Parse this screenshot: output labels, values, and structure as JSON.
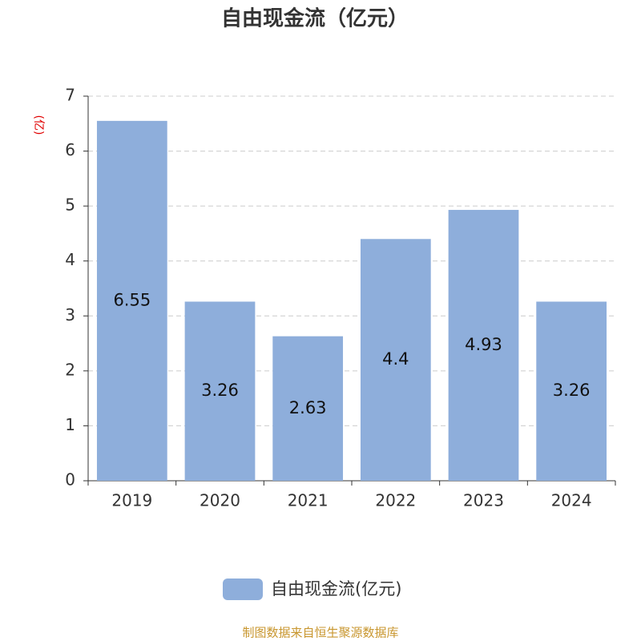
{
  "chart_data": {
    "type": "bar",
    "title": "自由现金流（亿元）",
    "y_label": "(亿)",
    "categories": [
      "2019",
      "2020",
      "2021",
      "2022",
      "2023",
      "2024"
    ],
    "series": [
      {
        "name": "自由现金流(亿元)",
        "color": "#8eaedb",
        "values": [
          6.55,
          3.26,
          2.63,
          4.4,
          4.93,
          3.26
        ]
      }
    ],
    "ylim": [
      0,
      7
    ],
    "yticks": [
      0,
      1,
      2,
      3,
      4,
      5,
      6,
      7
    ],
    "grid": true,
    "source": "制图数据来自恒生聚源数据库"
  }
}
